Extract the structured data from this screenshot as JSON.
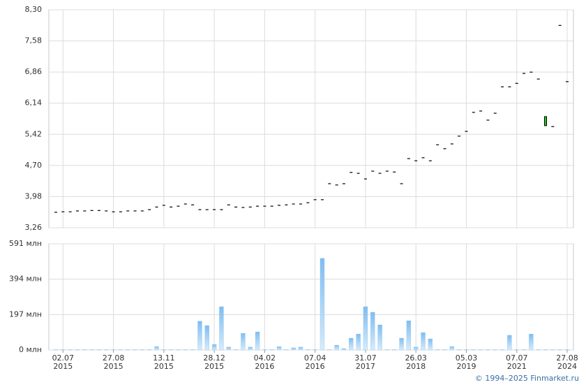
{
  "chart_data": {
    "type": "candlestick",
    "categories": [
      null,
      [
        "02.07",
        "2015"
      ],
      null,
      null,
      null,
      null,
      null,
      null,
      [
        "27.08",
        "2015"
      ],
      null,
      null,
      null,
      null,
      null,
      null,
      [
        "13.11",
        "2015"
      ],
      null,
      null,
      null,
      null,
      null,
      null,
      [
        "28.12",
        "2015"
      ],
      null,
      null,
      null,
      null,
      null,
      null,
      [
        "04.02",
        "2016"
      ],
      null,
      null,
      null,
      null,
      null,
      null,
      [
        "07.04",
        "2016"
      ],
      null,
      null,
      null,
      null,
      null,
      null,
      [
        "31.07",
        "2017"
      ],
      null,
      null,
      null,
      null,
      null,
      null,
      [
        "26.03",
        "2018"
      ],
      null,
      null,
      null,
      null,
      null,
      null,
      [
        "05.03",
        "2019"
      ],
      null,
      null,
      null,
      null,
      null,
      null,
      [
        "07.07",
        "2021"
      ],
      null,
      null,
      null,
      null,
      null,
      null,
      [
        "27.08",
        "2024"
      ]
    ],
    "open": [
      3.62,
      3.63,
      3.63,
      3.65,
      3.65,
      3.66,
      3.66,
      3.65,
      3.63,
      3.63,
      3.65,
      3.65,
      3.65,
      3.68,
      3.74,
      3.78,
      3.74,
      3.76,
      3.81,
      3.79,
      3.68,
      3.68,
      3.68,
      3.68,
      3.79,
      3.74,
      3.73,
      3.74,
      3.76,
      3.76,
      3.76,
      3.78,
      3.79,
      3.81,
      3.81,
      3.84,
      3.91,
      3.91,
      4.28,
      4.25,
      4.28,
      4.54,
      4.52,
      4.39,
      4.57,
      4.52,
      4.57,
      4.55,
      4.28,
      4.86,
      4.81,
      4.88,
      4.81,
      5.18,
      5.09,
      5.2,
      5.38,
      5.49,
      5.93,
      5.96,
      5.75,
      5.91,
      6.52,
      6.52,
      6.6,
      6.83,
      6.86,
      6.7,
      5.62,
      5.6,
      7.94,
      6.64
    ],
    "close": [
      3.62,
      3.63,
      3.63,
      3.65,
      3.65,
      3.66,
      3.66,
      3.65,
      3.63,
      3.63,
      3.65,
      3.65,
      3.65,
      3.68,
      3.74,
      3.78,
      3.74,
      3.76,
      3.81,
      3.79,
      3.68,
      3.68,
      3.68,
      3.68,
      3.79,
      3.74,
      3.73,
      3.74,
      3.76,
      3.76,
      3.76,
      3.78,
      3.79,
      3.81,
      3.81,
      3.84,
      3.91,
      3.91,
      4.28,
      4.25,
      4.28,
      4.54,
      4.52,
      4.39,
      4.57,
      4.52,
      4.57,
      4.55,
      4.28,
      4.86,
      4.81,
      4.88,
      4.81,
      5.18,
      5.09,
      5.2,
      5.38,
      5.49,
      5.93,
      5.96,
      5.75,
      5.91,
      6.52,
      6.52,
      6.6,
      6.83,
      6.86,
      6.7,
      5.83,
      5.6,
      7.94,
      6.64
    ],
    "up_color": "#22cc22",
    "line_color": "#000000",
    "ylim": [
      3.26,
      8.3
    ],
    "yticks": [
      {
        "value": 3.26,
        "label": "3,26"
      },
      {
        "value": 3.98,
        "label": "3,98"
      },
      {
        "value": 4.7,
        "label": "4,70"
      },
      {
        "value": 5.42,
        "label": "5,42"
      },
      {
        "value": 6.14,
        "label": "6,14"
      },
      {
        "value": 6.86,
        "label": "6,86"
      },
      {
        "value": 7.58,
        "label": "7,58"
      },
      {
        "value": 8.3,
        "label": "8,30"
      }
    ],
    "volume": [
      2,
      2,
      2,
      2,
      2,
      2,
      2,
      2,
      2,
      2,
      2,
      2,
      2,
      2,
      19,
      2,
      2,
      2,
      2,
      2,
      160,
      136,
      31,
      241,
      16,
      2,
      93,
      16,
      101,
      2,
      2,
      19,
      2,
      12,
      16,
      2,
      2,
      510,
      2,
      27,
      8,
      66,
      89,
      241,
      210,
      140,
      2,
      2,
      66,
      163,
      16,
      97,
      62,
      2,
      2,
      19,
      2,
      2,
      2,
      2,
      2,
      2,
      2,
      82,
      2,
      2,
      89,
      2,
      2,
      2,
      2,
      2
    ],
    "volume_color": "#7fbdf0",
    "y2lim": [
      0,
      591
    ],
    "y2ticks": [
      {
        "value": 0,
        "label": "0 млн"
      },
      {
        "value": 197,
        "label": "197 млн"
      },
      {
        "value": 394,
        "label": "394 млн"
      },
      {
        "value": 591,
        "label": "591 млн"
      }
    ],
    "grid": true
  },
  "footer": "© 1994–2025 Finmarket.ru"
}
